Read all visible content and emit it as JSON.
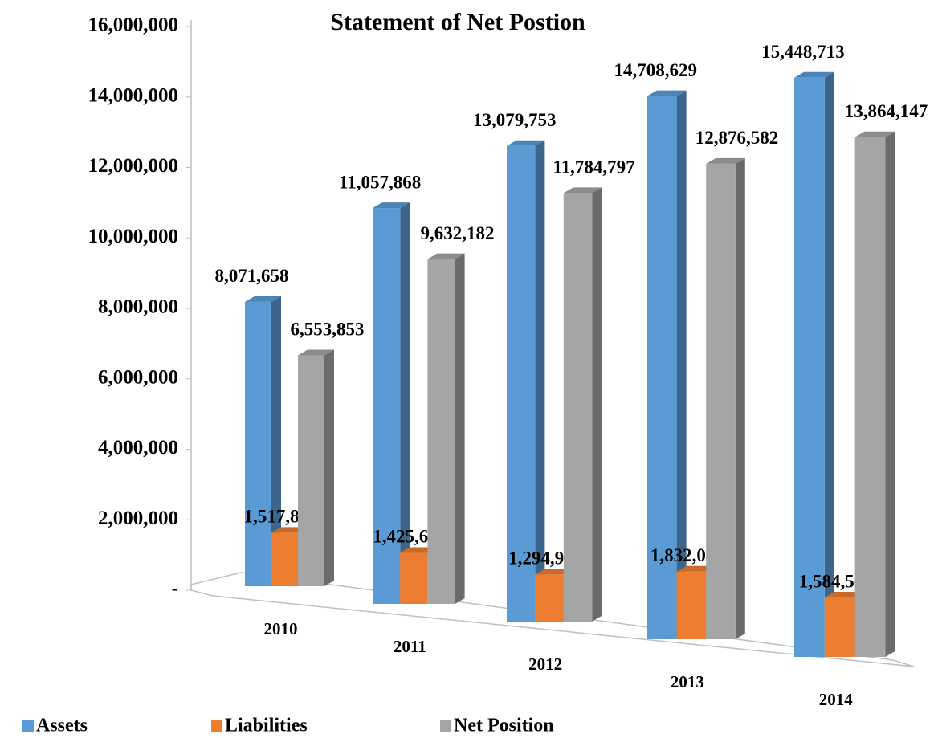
{
  "chart_data": {
    "type": "bar3d",
    "title": "Statement of Net Postion",
    "categories": [
      "2010",
      "2011",
      "2012",
      "2013",
      "2014"
    ],
    "series": [
      {
        "name": "Assets",
        "color": "#5b9bd5",
        "values": [
          8071658,
          11057868,
          13079753,
          14708629,
          15448713
        ],
        "value_labels": [
          "8,071,658",
          "11,057,868",
          "13,079,753",
          "14,708,629",
          "15,448,713"
        ]
      },
      {
        "name": "Liabilities",
        "color": "#ed7d31",
        "values": [
          1517805,
          1425686,
          1294956,
          1832047,
          1584566
        ],
        "value_labels": [
          "1,517,805",
          "1,425,686",
          "1,294,956",
          "1,832,047",
          "1,584,566"
        ]
      },
      {
        "name": "Net Position",
        "color": "#a5a5a5",
        "values": [
          6553853,
          9632182,
          11784797,
          12876582,
          13864147
        ],
        "value_labels": [
          "6,553,853",
          "9,632,182",
          "11,784,797",
          "12,876,582",
          "13,864,147"
        ]
      }
    ],
    "ylim": [
      0,
      16000000
    ],
    "yticks": [
      {
        "value": 0,
        "label": "-"
      },
      {
        "value": 2000000,
        "label": "2,000,000"
      },
      {
        "value": 4000000,
        "label": "4,000,000"
      },
      {
        "value": 6000000,
        "label": "6,000,000"
      },
      {
        "value": 8000000,
        "label": "8,000,000"
      },
      {
        "value": 10000000,
        "label": "10,000,000"
      },
      {
        "value": 12000000,
        "label": "12,000,000"
      },
      {
        "value": 14000000,
        "label": "14,000,000"
      },
      {
        "value": 16000000,
        "label": "16,000,000"
      }
    ],
    "legend": "bottom"
  }
}
